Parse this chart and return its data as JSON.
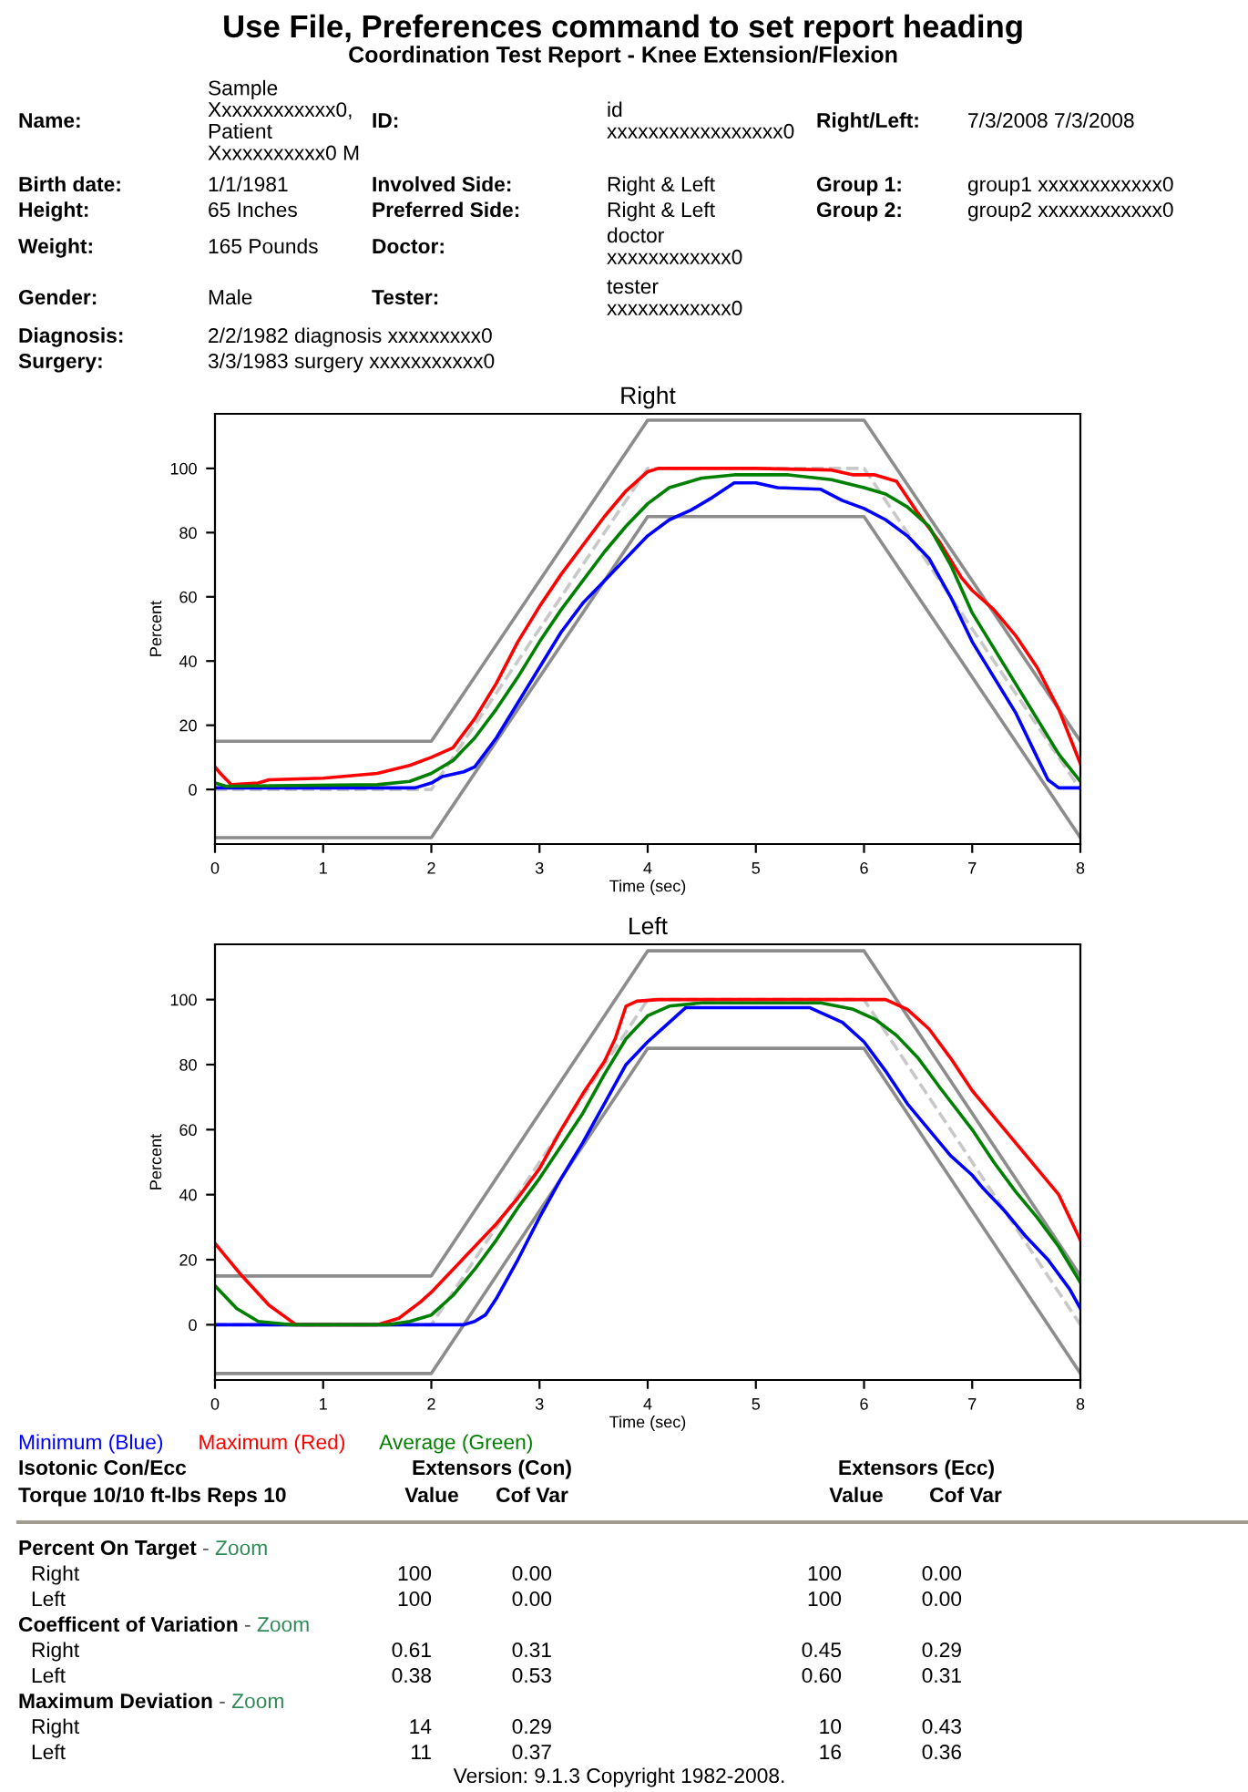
{
  "chart_data": [
    {
      "type": "other",
      "title": "Use File, Preferences command to set report heading",
      "subtitle": "Coordination Test Report - Knee Extension/Flexion",
      "annotations": [
        "Name:",
        "Sample\nXxxxxxxxxxxx0,\nPatient\nXxxxxxxxxxx0 M",
        "ID:",
        "id\nxxxxxxxxxxxxxxxxx0",
        "Right/Left:",
        "7/3/2008 7/3/2008",
        "Birth date:",
        "1/1/1981",
        "Involved Side:",
        "Right & Left",
        "Group 1:",
        "group1 xxxxxxxxxxxx0",
        "Height:",
        "65 Inches",
        "Preferred Side:",
        "Right & Left",
        "Group 2:",
        "group2 xxxxxxxxxxxx0",
        "Weight:",
        "165 Pounds",
        "Doctor:",
        "doctor\nxxxxxxxxxxxx0",
        "Gender:",
        "Male",
        "Tester:",
        "tester\nxxxxxxxxxxxx0",
        "Diagnosis:",
        "2/2/1982 diagnosis xxxxxxxxx0",
        "Surgery:",
        "3/3/1983 surgery xxxxxxxxxxx0"
      ]
    },
    {
      "type": "line",
      "title": "Right",
      "xlabel": "Time (sec)",
      "ylabel": "Percent",
      "xlim": [
        0,
        8
      ],
      "xticks": [
        0,
        1,
        2,
        3,
        4,
        5,
        6,
        7,
        8
      ],
      "ylim": [
        -17,
        117
      ],
      "yticks": [
        0,
        20,
        40,
        60,
        80,
        100
      ],
      "grid": false,
      "marker": "none",
      "series": [
        {
          "color": "#8c8c8c",
          "x": [
            0,
            2,
            4,
            6,
            8
          ],
          "values": [
            15,
            15,
            115,
            115,
            15
          ]
        },
        {
          "color": "#8c8c8c",
          "x": [
            0,
            2,
            4,
            6,
            8
          ],
          "values": [
            -15,
            -15,
            85,
            85,
            -15
          ]
        },
        {
          "color": "#c8c8c8",
          "line_style": "dashed",
          "x": [
            0,
            2,
            4,
            6,
            8
          ],
          "values": [
            0,
            0,
            100,
            100,
            0
          ]
        },
        {
          "color": "#0000ff",
          "x": [
            0,
            1.85,
            2,
            2.1,
            2.3,
            2.4,
            2.6,
            2.8,
            3,
            3.2,
            3.4,
            3.6,
            3.8,
            4,
            4.2,
            4.4,
            4.6,
            4.8,
            5,
            5.2,
            5.6,
            5.8,
            6,
            6.2,
            6.4,
            6.6,
            6.8,
            7,
            7.2,
            7.4,
            7.6,
            7.7,
            7.8,
            8
          ],
          "values": [
            0.5,
            0.5,
            2,
            4,
            5.5,
            7,
            16,
            27,
            38,
            49,
            58,
            65,
            72,
            79,
            84,
            87,
            91,
            95.5,
            95.5,
            94,
            93.5,
            90,
            87.5,
            84,
            79,
            72,
            60,
            46,
            35,
            24,
            10,
            3,
            0.5,
            0.5
          ]
        },
        {
          "color": "#ff0000",
          "x": [
            0,
            0.05,
            0.15,
            0.4,
            0.5,
            1,
            1.5,
            1.8,
            2,
            2.2,
            2.4,
            2.6,
            2.8,
            3,
            3.2,
            3.4,
            3.6,
            3.8,
            4,
            4.1,
            5,
            5.7,
            5.9,
            6.1,
            6.3,
            6.5,
            6.7,
            6.9,
            7,
            7.2,
            7.4,
            7.6,
            7.8,
            8
          ],
          "values": [
            7,
            5,
            1.5,
            2,
            3,
            3.5,
            5,
            7.5,
            10,
            13,
            22,
            33,
            46,
            57,
            67,
            76,
            85,
            93,
            99,
            100,
            100,
            99.5,
            98,
            98,
            96,
            86,
            77,
            66,
            62,
            56,
            48,
            38,
            25,
            8
          ]
        },
        {
          "color": "#008000",
          "x": [
            0,
            0.1,
            1.5,
            1.8,
            2,
            2.2,
            2.4,
            2.6,
            2.8,
            3,
            3.2,
            3.4,
            3.6,
            3.8,
            4,
            4.2,
            4.5,
            4.8,
            5.3,
            5.7,
            6,
            6.2,
            6.4,
            6.6,
            6.8,
            7,
            7.2,
            7.4,
            7.6,
            7.8,
            8
          ],
          "values": [
            2,
            1,
            1.5,
            2.5,
            5,
            9,
            16,
            25,
            35,
            46,
            56,
            65,
            74,
            82,
            89,
            94,
            97,
            98,
            98,
            96.5,
            94,
            92,
            88,
            82,
            70,
            55,
            44,
            33,
            22,
            11,
            2.5
          ]
        }
      ]
    },
    {
      "type": "line",
      "title": "Left",
      "xlabel": "Time (sec)",
      "ylabel": "Percent",
      "xlim": [
        0,
        8
      ],
      "xticks": [
        0,
        1,
        2,
        3,
        4,
        5,
        6,
        7,
        8
      ],
      "ylim": [
        -17,
        117
      ],
      "yticks": [
        0,
        20,
        40,
        60,
        80,
        100
      ],
      "grid": false,
      "marker": "none",
      "legend": "bottom",
      "series": [
        {
          "color": "#8c8c8c",
          "x": [
            0,
            2,
            4,
            6,
            8
          ],
          "values": [
            15,
            15,
            115,
            115,
            15
          ]
        },
        {
          "color": "#8c8c8c",
          "x": [
            0,
            2,
            4,
            6,
            8
          ],
          "values": [
            -15,
            -15,
            85,
            85,
            -15
          ]
        },
        {
          "color": "#c8c8c8",
          "line_style": "dashed",
          "x": [
            0,
            2,
            4,
            6,
            8
          ],
          "values": [
            0,
            0,
            100,
            100,
            0
          ]
        },
        {
          "name": "Minimum (Blue)",
          "color": "#0000ff",
          "x": [
            0,
            2.3,
            2.4,
            2.5,
            2.6,
            2.8,
            3,
            3.2,
            3.4,
            3.6,
            3.8,
            4,
            4.2,
            4.35,
            5.5,
            5.8,
            6,
            6.2,
            6.4,
            6.6,
            6.8,
            7,
            7.1,
            7.3,
            7.5,
            7.7,
            7.9,
            8
          ],
          "values": [
            0,
            0,
            1,
            3,
            8,
            20,
            33,
            45,
            56,
            68,
            80,
            87,
            93,
            97.5,
            97.5,
            93,
            87,
            78,
            68,
            60,
            52,
            46,
            42,
            35,
            27,
            20,
            11,
            5
          ]
        },
        {
          "name": "Maximum (Red)",
          "color": "#ff0000",
          "x": [
            0,
            0.25,
            0.5,
            0.75,
            1.5,
            1.7,
            1.9,
            2,
            2.2,
            2.4,
            2.6,
            2.8,
            3,
            3.2,
            3.4,
            3.6,
            3.7,
            3.8,
            3.9,
            4.1,
            6.2,
            6.4,
            6.6,
            6.8,
            7,
            7.2,
            7.4,
            7.6,
            7.8,
            8
          ],
          "values": [
            25,
            15,
            6,
            0,
            0,
            2,
            7,
            10,
            17,
            24,
            31,
            39,
            48,
            60,
            71,
            81,
            88,
            98,
            99.5,
            100,
            100,
            97,
            91,
            82,
            72,
            64,
            56,
            48,
            40,
            26
          ]
        },
        {
          "name": "Average (Green)",
          "color": "#008000",
          "x": [
            0,
            0.2,
            0.4,
            0.7,
            1.6,
            1.8,
            2,
            2.2,
            2.4,
            2.6,
            2.8,
            3,
            3.2,
            3.4,
            3.6,
            3.8,
            4,
            4.2,
            4.5,
            5.6,
            5.9,
            6.1,
            6.3,
            6.5,
            6.7,
            7,
            7.2,
            7.4,
            7.6,
            7.8,
            8
          ],
          "values": [
            12,
            5,
            1,
            0,
            0,
            1,
            3,
            9,
            17,
            26,
            36,
            45,
            55,
            65,
            77,
            88,
            95,
            98,
            99,
            99,
            97,
            94,
            89,
            82,
            73,
            60,
            50,
            41,
            33,
            24,
            13
          ]
        }
      ]
    },
    {
      "type": "other",
      "annotations": [
        "Isotonic Con/Ecc",
        "Extensors (Con)",
        "Extensors (Ecc)",
        "Torque 10/10 ft-lbs Reps 10",
        "Value",
        "Cof Var",
        "Value",
        "Cof Var",
        "Percent On Target",
        "-",
        "Zoom",
        "Right",
        "100",
        "0.00",
        "100",
        "0.00",
        "Left",
        "100",
        "0.00",
        "100",
        "0.00",
        "Coefficent of Variation",
        "-",
        "Zoom",
        "Right",
        "0.61",
        "0.31",
        "0.45",
        "0.29",
        "Left",
        "0.38",
        "0.53",
        "0.60",
        "0.31",
        "Maximum Deviation",
        "-",
        "Zoom",
        "Right",
        "14",
        "0.29",
        "10",
        "0.43",
        "Left",
        "11",
        "0.37",
        "16",
        "0.36",
        "Version: 9.1.3 Copyright 1982-2008."
      ]
    }
  ]
}
